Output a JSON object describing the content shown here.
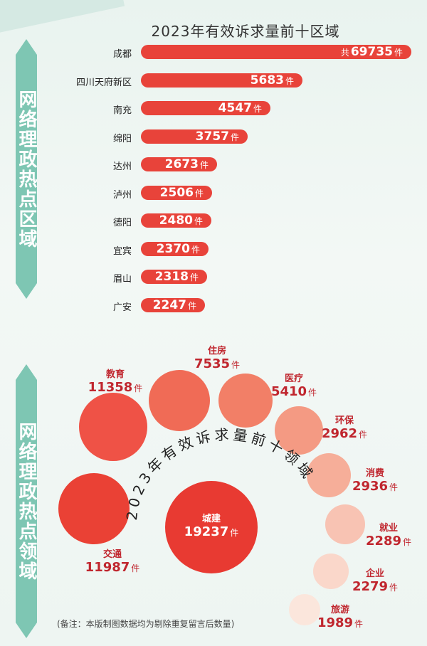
{
  "side_titles": {
    "regions": "网络理政热点区域",
    "fields": "网络理政热点领域"
  },
  "chart_data": [
    {
      "type": "bar",
      "title": "2023年有效诉求量前十区域",
      "categories": [
        "成都",
        "四川天府新区",
        "南充",
        "绵阳",
        "达州",
        "泸州",
        "德阳",
        "宜宾",
        "眉山",
        "广安"
      ],
      "values": [
        69735,
        5683,
        4547,
        3757,
        2673,
        2506,
        2480,
        2370,
        2318,
        2247
      ],
      "value_prefix_first": "共",
      "unit": "件",
      "color": "#e8433a"
    },
    {
      "type": "bubble",
      "title": "2023年有效诉求量前十领域",
      "categories": [
        "城建",
        "交通",
        "教育",
        "住房",
        "医疗",
        "环保",
        "消费",
        "就业",
        "企业",
        "旅游"
      ],
      "values": [
        19237,
        11987,
        11358,
        7535,
        5410,
        2962,
        2936,
        2289,
        2279,
        1989
      ],
      "unit": "件",
      "colors": [
        "#e83a32",
        "#ea4135",
        "#ef5246",
        "#f06b56",
        "#f27f67",
        "#f49a83",
        "#f6ae99",
        "#f8c3b3",
        "#fad7ca",
        "#fbe6dc"
      ]
    }
  ],
  "note": "(备注：本版制图数据均为剔除重复留言后数量)"
}
